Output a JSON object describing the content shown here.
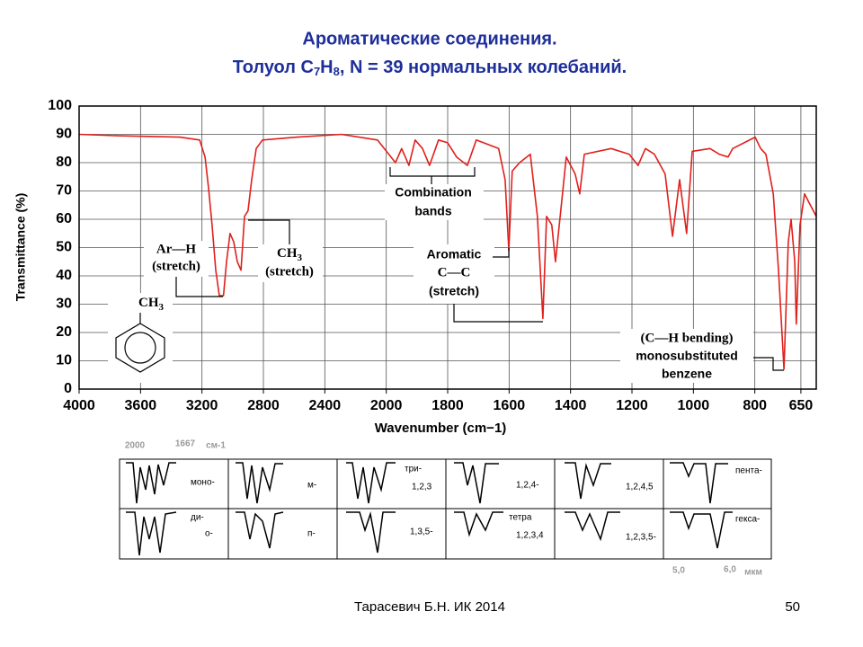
{
  "slide": {
    "title_line1": "Ароматические соединения.",
    "title_line2": [
      "Толуол C",
      "7",
      "H",
      "8",
      ",  N = 39 нормальных колебаний."
    ],
    "footer_author": "Тарасевич Б.Н.  ИК 2014",
    "footer_page": "50",
    "patterns": {
      "top_labels": [
        "2000",
        "1667",
        "см-1"
      ],
      "labels": [
        "моно-",
        "м-",
        "три-",
        "1,2,3",
        "1,2,4-",
        "1,2,4,5",
        "пента-",
        "ди-",
        "о-",
        "п-",
        "1,3,5-",
        "тетра",
        "1,2,3,4",
        "1,2,3,5-",
        "гекса-"
      ],
      "bottom_labels": [
        "5,0",
        "6,0",
        "мкм"
      ]
    }
  },
  "chart_data": {
    "type": "line",
    "x_label": "Wavenumber (cm−1)",
    "y_label": "Transmittance (%)",
    "annotations": {
      "arh": "Ar—H",
      "arh_stretch": "(stretch)",
      "ch3": [
        "CH",
        "3"
      ],
      "ch3_stretch": "(stretch)",
      "comb1": "Combination",
      "comb2": "bands",
      "arom1": "Aromatic",
      "arom2": "C—C",
      "arom3": "(stretch)",
      "bend1": "(C—H bending)",
      "bend2": "monosubstituted",
      "bend3": "benzene",
      "struct": [
        "CH",
        "3"
      ]
    },
    "x": [
      4000,
      3750,
      3345,
      3215,
      3180,
      3157,
      3134,
      3110,
      3087,
      3060,
      3040,
      3017,
      2993,
      2970,
      2946,
      2923,
      2900,
      2876,
      2847,
      2806,
      2580,
      2290,
      2057,
      1970,
      1950,
      1926,
      1906,
      1882,
      1859,
      1830,
      1800,
      1771,
      1736,
      1707,
      1634,
      1613,
      1601,
      1590,
      1566,
      1531,
      1508,
      1490,
      1478,
      1461,
      1449,
      1431,
      1414,
      1385,
      1370,
      1355,
      1268,
      1209,
      1180,
      1156,
      1127,
      1092,
      1068,
      1045,
      1022,
      1004,
      946,
      916,
      887,
      872,
      799,
      781,
      764,
      740,
      723,
      705,
      691,
      682,
      670,
      665,
      653,
      638,
      624,
      600
    ],
    "series": [
      {
        "name": "Toluene",
        "color": "#e0201c",
        "values": [
          90,
          89.5,
          89,
          88,
          82,
          71,
          58,
          42,
          33,
          33,
          45,
          55,
          52,
          45,
          42,
          61,
          63,
          74,
          85,
          88,
          89,
          90,
          88,
          80,
          85,
          79,
          88,
          85,
          79,
          88,
          87,
          82,
          79,
          88,
          85,
          74,
          49,
          77,
          80,
          83,
          61,
          25,
          61,
          58,
          45,
          64,
          82,
          76,
          69,
          83,
          85,
          83,
          79,
          85,
          83,
          76,
          54,
          74,
          55,
          84,
          85,
          83,
          82,
          85,
          89,
          85,
          83,
          69,
          42,
          7,
          52,
          60,
          45,
          23,
          58,
          69,
          66,
          61
        ]
      }
    ],
    "xlim": [
      4000,
      600
    ],
    "xticks": [
      4000,
      3600,
      3200,
      2800,
      2400,
      2000,
      1800,
      1600,
      1400,
      1200,
      1000,
      800,
      650
    ],
    "ylim": [
      0,
      100
    ],
    "yticks": [
      0,
      10,
      20,
      30,
      40,
      50,
      60,
      70,
      80,
      90,
      100
    ],
    "grid": true
  }
}
